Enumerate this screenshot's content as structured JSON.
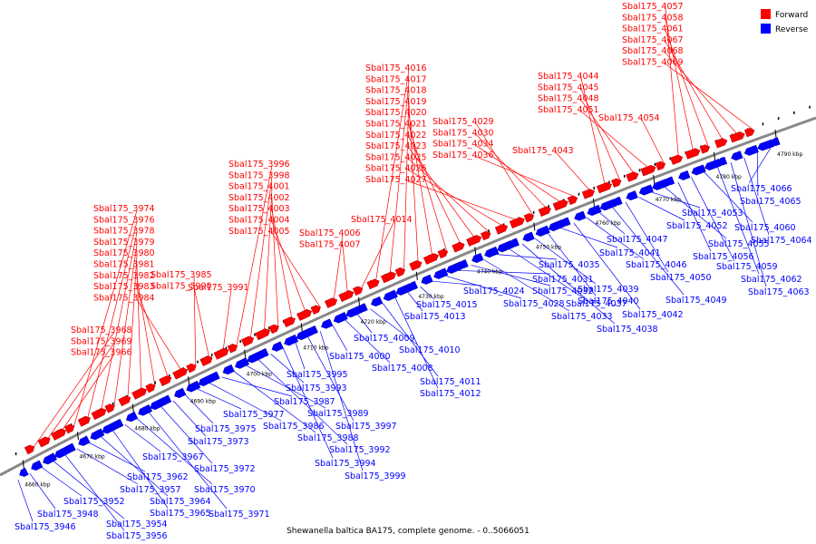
{
  "caption": "Shewanella baltica BA175, complete genome. - 0..5066051",
  "colors": {
    "forward": "#ff0000",
    "reverse": "#0000ff",
    "axis": "#888888",
    "tick": "#000000"
  },
  "legend": {
    "forward": "Forward",
    "reverse": "Reverse"
  },
  "ticks": [
    "4660 kbp",
    "4670 kbp",
    "4680 kbp",
    "4690 kbp",
    "4700 kbp",
    "4710 kbp",
    "4720 kbp",
    "4730 kbp",
    "4740 kbp",
    "4750 kbp",
    "4760 kbp",
    "4770 kbp",
    "4780 kbp",
    "4790 kbp"
  ],
  "forward_genes": [
    "Sbal175_3968",
    "Sbal175_3969",
    "Sbal175_3966",
    "Sbal175_3974",
    "Sbal175_3976",
    "Sbal175_3978",
    "Sbal175_3979",
    "Sbal175_3980",
    "Sbal175_3981",
    "Sbal175_3982",
    "Sbal175_3983",
    "Sbal175_3984",
    "Sbal175_3985",
    "Sbal175_3990",
    "Sbal175_3991",
    "Sbal175_3996",
    "Sbal175_3998",
    "Sbal175_4001",
    "Sbal175_4002",
    "Sbal175_4003",
    "Sbal175_4004",
    "Sbal175_4005",
    "Sbal175_4006",
    "Sbal175_4007",
    "Sbal175_4014",
    "Sbal175_4016",
    "Sbal175_4017",
    "Sbal175_4018",
    "Sbal175_4019",
    "Sbal175_4020",
    "Sbal175_4021",
    "Sbal175_4022",
    "Sbal175_4023",
    "Sbal175_4025",
    "Sbal175_4026",
    "Sbal175_4027",
    "Sbal175_4029",
    "Sbal175_4030",
    "Sbal175_4034",
    "Sbal175_4036",
    "Sbal175_4043",
    "Sbal175_4044",
    "Sbal175_4045",
    "Sbal175_4048",
    "Sbal175_4051",
    "Sbal175_4054",
    "Sbal175_4057",
    "Sbal175_4058",
    "Sbal175_4061",
    "Sbal175_4067",
    "Sbal175_4068",
    "Sbal175_4069"
  ],
  "reverse_genes": [
    "Sbal175_3946",
    "Sbal175_3948",
    "Sbal175_3952",
    "Sbal175_3954",
    "Sbal175_3956",
    "Sbal175_3957",
    "Sbal175_3962",
    "Sbal175_3964",
    "Sbal175_3965",
    "Sbal175_3967",
    "Sbal175_3970",
    "Sbal175_3971",
    "Sbal175_3972",
    "Sbal175_3973",
    "Sbal175_3975",
    "Sbal175_3977",
    "Sbal175_3986",
    "Sbal175_3987",
    "Sbal175_3988",
    "Sbal175_3989",
    "Sbal175_3992",
    "Sbal175_3993",
    "Sbal175_3994",
    "Sbal175_3995",
    "Sbal175_3997",
    "Sbal175_3999",
    "Sbal175_4000",
    "Sbal175_4008",
    "Sbal175_4009",
    "Sbal175_4010",
    "Sbal175_4011",
    "Sbal175_4012",
    "Sbal175_4013",
    "Sbal175_4015",
    "Sbal175_4024",
    "Sbal175_4028",
    "Sbal175_4031",
    "Sbal175_4032",
    "Sbal175_4033",
    "Sbal175_4035",
    "Sbal175_4037",
    "Sbal175_4038",
    "Sbal175_4039",
    "Sbal175_4040",
    "Sbal175_4041",
    "Sbal175_4042",
    "Sbal175_4046",
    "Sbal175_4047",
    "Sbal175_4049",
    "Sbal175_4050",
    "Sbal175_4052",
    "Sbal175_4053",
    "Sbal175_4055",
    "Sbal175_4056",
    "Sbal175_4059",
    "Sbal175_4060",
    "Sbal175_4062",
    "Sbal175_4063",
    "Sbal175_4064",
    "Sbal175_4065",
    "Sbal175_4066"
  ]
}
